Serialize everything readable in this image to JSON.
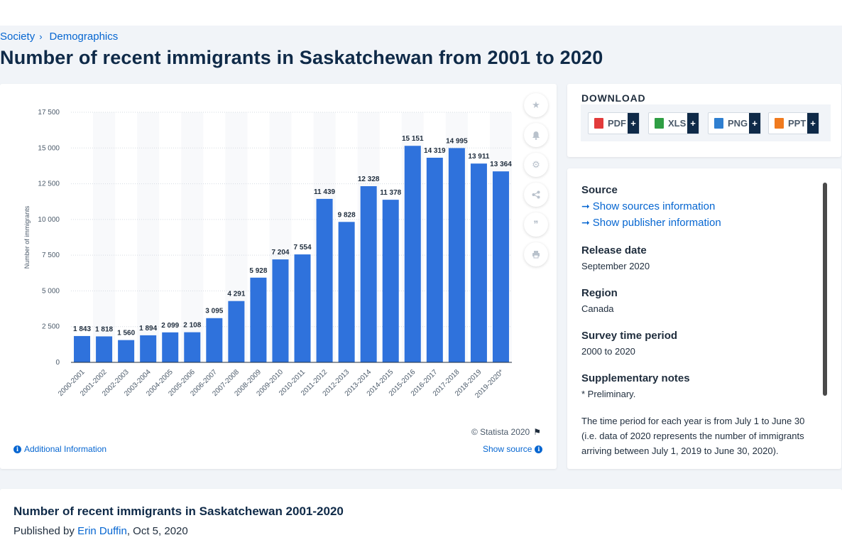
{
  "breadcrumb": {
    "item1": "Society",
    "item2": "Demographics"
  },
  "page_title": "Number of recent immigrants in Saskatchewan from 2001 to 2020",
  "tools": [
    "star-icon",
    "bell-icon",
    "gear-icon",
    "share-icon",
    "quote-icon",
    "print-icon"
  ],
  "chart_credit": "© Statista 2020",
  "additional_info": "Additional Information",
  "show_source": "Show source",
  "download": {
    "title": "DOWNLOAD",
    "buttons": [
      {
        "label": "PDF",
        "color": "#e23b3b"
      },
      {
        "label": "XLS",
        "color": "#2f9e44"
      },
      {
        "label": "PNG",
        "color": "#2f7fd0"
      },
      {
        "label": "PPT",
        "color": "#f07a1e"
      }
    ],
    "plus": "+"
  },
  "info": {
    "source_h": "Source",
    "show_sources": "Show sources information",
    "show_publisher": "Show publisher information",
    "release_h": "Release date",
    "release_v": "September 2020",
    "region_h": "Region",
    "region_v": "Canada",
    "survey_h": "Survey time period",
    "survey_v": "2000 to 2020",
    "supp_h": "Supplementary notes",
    "supp_v1": "* Preliminary.",
    "supp_v2": "The time period for each year is from July 1 to June 30 (i.e. data of 2020 represents the number of immigrants arriving between July 1, 2019 to June 30, 2020)."
  },
  "bottom": {
    "title": "Number of recent immigrants in Saskatchewan 2001-2020",
    "published_prefix": "Published by",
    "author": "Erin Duffin",
    "date": ", Oct 5, 2020"
  },
  "chart_data": {
    "type": "bar",
    "ylabel": "Number of immigrants",
    "xlabel": "",
    "ylim": [
      0,
      17500
    ],
    "yticks": [
      0,
      2500,
      5000,
      7500,
      10000,
      12500,
      15000,
      17500
    ],
    "ytick_labels": [
      "0",
      "2 500",
      "5 000",
      "7 500",
      "10 000",
      "12 500",
      "15 000",
      "17 500"
    ],
    "grid": true,
    "bar_color": "#2f72dc",
    "categories": [
      "2000-2001",
      "2001-2002",
      "2002-2003",
      "2003-2004",
      "2004-2005",
      "2005-2006",
      "2006-2007",
      "2007-2008",
      "2008-2009",
      "2009-2010",
      "2010-2011",
      "2011-2012",
      "2012-2013",
      "2013-2014",
      "2014-2015",
      "2015-2016",
      "2016-2017",
      "2017-2018",
      "2018-2019",
      "2019-2020*"
    ],
    "values": [
      1843,
      1818,
      1560,
      1894,
      2099,
      2108,
      3095,
      4291,
      5928,
      7204,
      7554,
      11439,
      9828,
      12328,
      11378,
      15151,
      14319,
      14995,
      13911,
      13364
    ],
    "value_labels": [
      "1 843",
      "1 818",
      "1 560",
      "1 894",
      "2 099",
      "2 108",
      "3 095",
      "4 291",
      "5 928",
      "7 204",
      "7 554",
      "11 439",
      "9 828",
      "12 328",
      "11 378",
      "15 151",
      "14 319",
      "14 995",
      "13 911",
      "13 364"
    ]
  }
}
